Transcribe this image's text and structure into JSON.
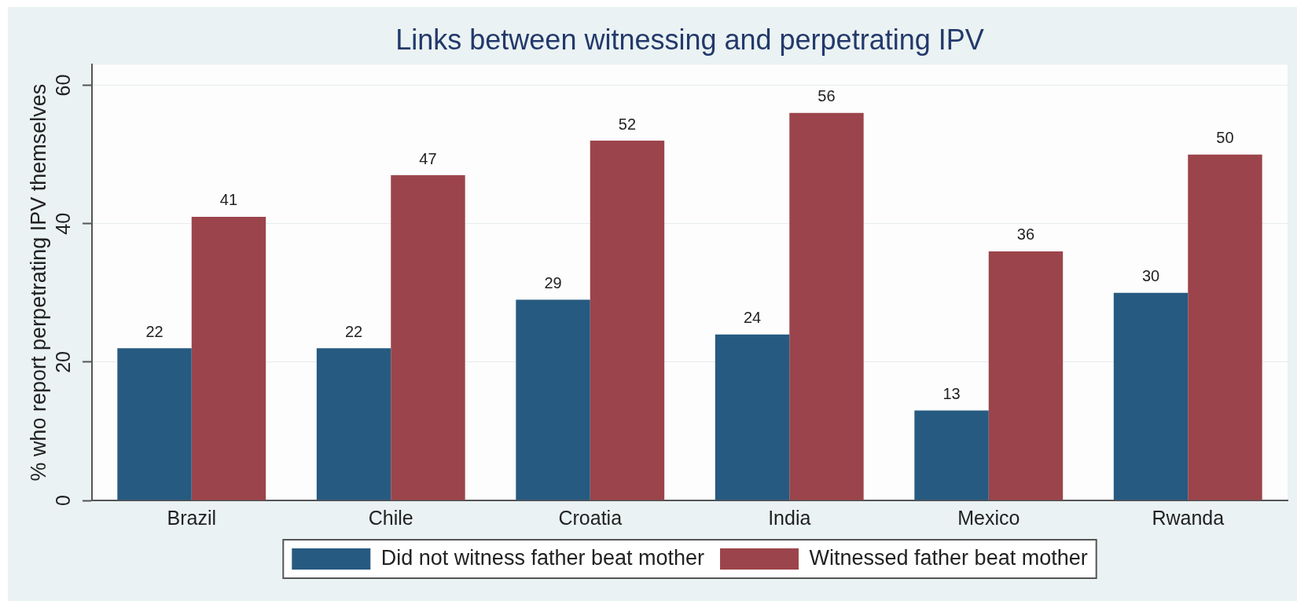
{
  "chart_data": {
    "type": "bar",
    "title": "Links between witnessing and perpetrating IPV",
    "ylabel": "% who report perpetrating IPV themselves",
    "categories": [
      "Brazil",
      "Chile",
      "Croatia",
      "India",
      "Mexico",
      "Rwanda"
    ],
    "series": [
      {
        "name": "Did not witness father beat mother",
        "color": "#275a80",
        "values": [
          22,
          22,
          29,
          24,
          13,
          30
        ]
      },
      {
        "name": "Witnessed father beat mother",
        "color": "#9c444b",
        "values": [
          41,
          47,
          52,
          56,
          36,
          50
        ]
      }
    ],
    "ylim": [
      0,
      63
    ],
    "yticks": [
      0,
      20,
      40,
      60
    ],
    "grid": "y",
    "legend": "bottom",
    "data_labels": true
  }
}
